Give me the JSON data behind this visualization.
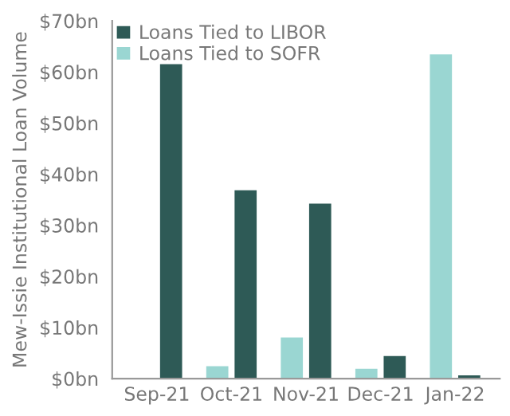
{
  "chart_data": {
    "type": "bar",
    "ylabel": "Mew-Issie Institutional Loan Volume",
    "categories": [
      "Sep-21",
      "Oct-21",
      "Nov-21",
      "Dec-21",
      "Jan-22"
    ],
    "series": [
      {
        "name": "Loans Tied to SOFR",
        "color": "#9ad6d2",
        "values": [
          null,
          2.6,
          8.2,
          2.1,
          63.6
        ]
      },
      {
        "name": "Loans Tied to LIBOR",
        "color": "#2e5a56",
        "values": [
          61.7,
          37.0,
          34.4,
          4.6,
          0.8
        ]
      }
    ],
    "ylim": [
      0,
      70
    ],
    "yticks": [
      {
        "value": 0,
        "label": "$0bn"
      },
      {
        "value": 10,
        "label": "$10bn"
      },
      {
        "value": 20,
        "label": "$20bn"
      },
      {
        "value": 30,
        "label": "$30bn"
      },
      {
        "value": 40,
        "label": "$40bn"
      },
      {
        "value": 50,
        "label": "$50bn"
      },
      {
        "value": 60,
        "label": "$60bn"
      },
      {
        "value": 70,
        "label": "$70bn"
      }
    ],
    "grid": false,
    "legend": "top left"
  }
}
